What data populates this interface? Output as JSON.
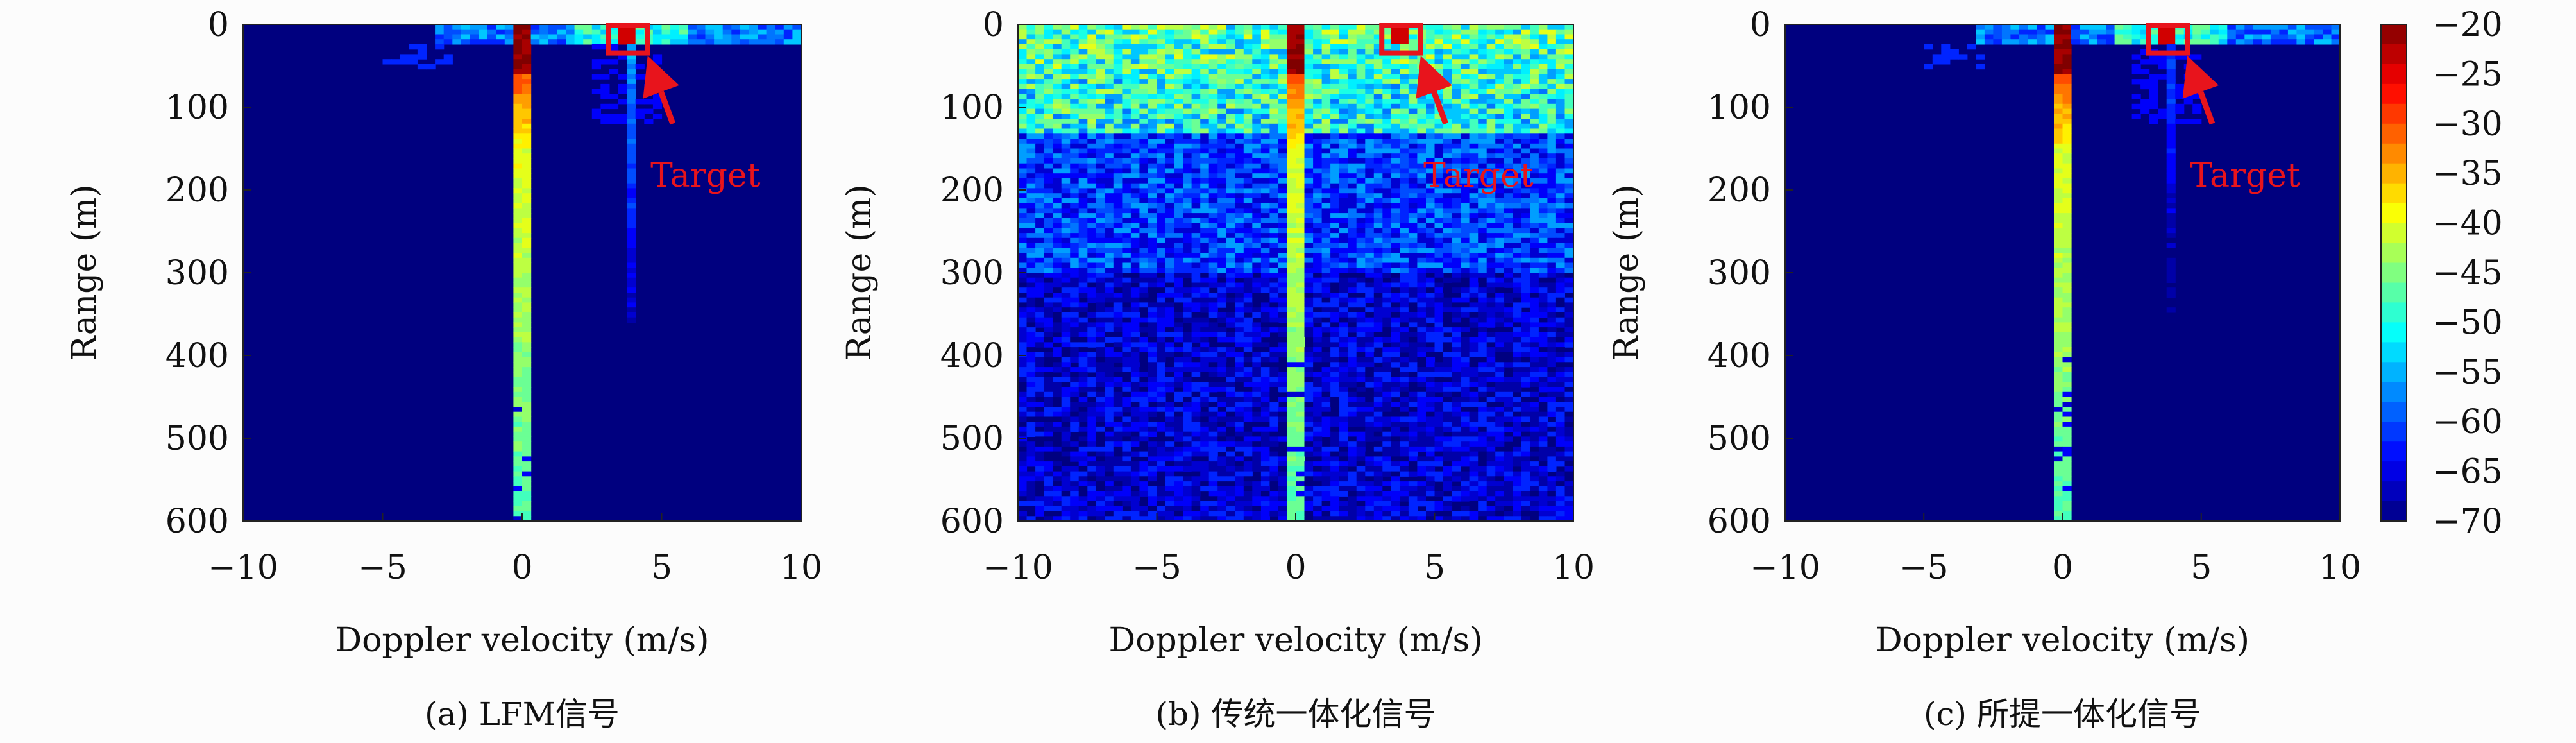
{
  "chart_data": [
    {
      "type": "heatmap",
      "caption": "(a) LFM信号",
      "xlabel": "Doppler velocity (m/s)",
      "ylabel": "Range (m)",
      "xlim": [
        -10,
        10
      ],
      "ylim": [
        600,
        0
      ],
      "xticks": [
        "−10",
        "−5",
        "0",
        "5",
        "10"
      ],
      "xtick_values": [
        -10,
        -5,
        0,
        5,
        10
      ],
      "yticks": [
        "0",
        "100",
        "200",
        "300",
        "400",
        "500",
        "600"
      ],
      "ytick_values": [
        0,
        100,
        200,
        300,
        400,
        500,
        600
      ],
      "annotation": {
        "text": "Target",
        "box_x": [
          3.1,
          4.5
        ],
        "box_y": [
          0,
          33
        ],
        "arrow_from": [
          5.4,
          120
        ],
        "arrow_to": [
          4.5,
          38
        ],
        "text_at": [
          4.6,
          182
        ]
      },
      "features": {
        "zero_doppler_line_velocity": 0,
        "target_velocity": 3.8,
        "target_range": 12,
        "noise_floor": "low"
      }
    },
    {
      "type": "heatmap",
      "caption": "(b) 传统一体化信号",
      "xlabel": "Doppler velocity (m/s)",
      "ylabel": "Range (m)",
      "xlim": [
        -10,
        10
      ],
      "ylim": [
        600,
        0
      ],
      "xticks": [
        "−10",
        "−5",
        "0",
        "5",
        "10"
      ],
      "xtick_values": [
        -10,
        -5,
        0,
        5,
        10
      ],
      "yticks": [
        "0",
        "100",
        "200",
        "300",
        "400",
        "500",
        "600"
      ],
      "ytick_values": [
        0,
        100,
        200,
        300,
        400,
        500,
        600
      ],
      "annotation": {
        "text": "Target",
        "box_x": [
          3.1,
          4.5
        ],
        "box_y": [
          0,
          33
        ],
        "arrow_from": [
          5.4,
          120
        ],
        "arrow_to": [
          4.5,
          38
        ],
        "text_at": [
          4.6,
          182
        ]
      },
      "features": {
        "zero_doppler_line_velocity": 0,
        "target_velocity": 3.8,
        "target_range": 12,
        "noise_floor": "high"
      }
    },
    {
      "type": "heatmap",
      "caption": "(c) 所提一体化信号",
      "xlabel": "Doppler velocity (m/s)",
      "ylabel": "Range (m)",
      "xlim": [
        -10,
        10
      ],
      "ylim": [
        600,
        0
      ],
      "xticks": [
        "−10",
        "−5",
        "0",
        "5",
        "10"
      ],
      "xtick_values": [
        -10,
        -5,
        0,
        5,
        10
      ],
      "yticks": [
        "0",
        "100",
        "200",
        "300",
        "400",
        "500",
        "600"
      ],
      "ytick_values": [
        0,
        100,
        200,
        300,
        400,
        500,
        600
      ],
      "annotation": {
        "text": "Target",
        "box_x": [
          3.1,
          4.5
        ],
        "box_y": [
          0,
          33
        ],
        "arrow_from": [
          5.4,
          120
        ],
        "arrow_to": [
          4.5,
          38
        ],
        "text_at": [
          4.6,
          182
        ]
      },
      "features": {
        "zero_doppler_line_velocity": 0,
        "target_velocity": 3.8,
        "target_range": 12,
        "noise_floor": "low"
      }
    }
  ],
  "colorbar": {
    "colormap": "jet",
    "range": [
      -70,
      -20
    ],
    "ticks": [
      "−20",
      "−25",
      "−30",
      "−35",
      "−40",
      "−45",
      "−50",
      "−55",
      "−60",
      "−65",
      "−70"
    ],
    "tick_values": [
      -20,
      -25,
      -30,
      -35,
      -40,
      -45,
      -50,
      -55,
      -60,
      -65,
      -70
    ]
  },
  "colors": {
    "annotation": "#e8141c",
    "background_cell": "#00007f"
  }
}
